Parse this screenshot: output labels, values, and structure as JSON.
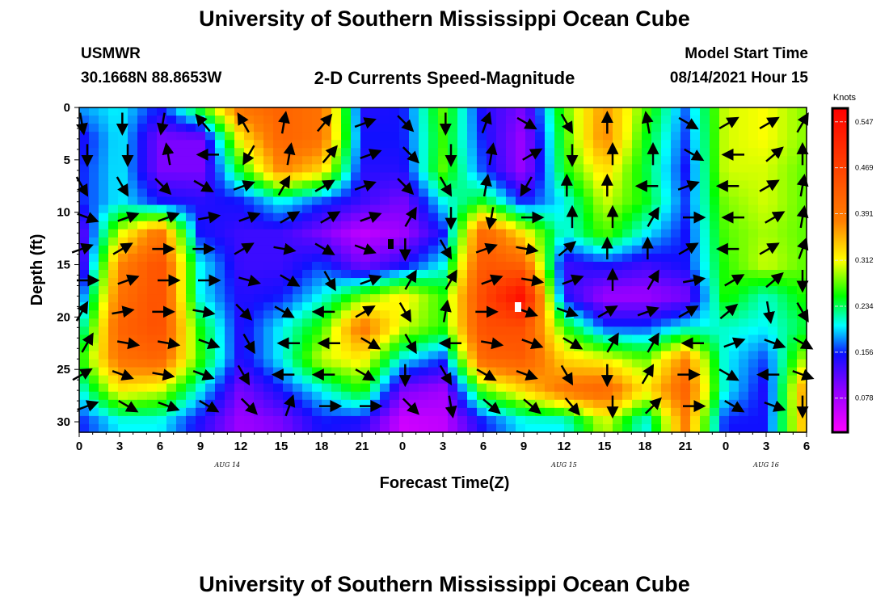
{
  "header": {
    "title": "University of Southern Mississippi Ocean Cube",
    "station": "USMWR",
    "coords": "30.1668N  88.8653W",
    "subtitle": "2-D Currents Speed-Magnitude",
    "model_start_label": "Model Start Time",
    "model_start_value": "08/14/2021 Hour 15",
    "footer_title": "University of Southern Mississippi Ocean Cube"
  },
  "chart_data": {
    "type": "heatmap",
    "title": "2-D Currents Speed-Magnitude",
    "xlabel": "Forecast Time(Z)",
    "ylabel": "Depth (ft)",
    "x_hours": [
      0,
      3,
      6,
      9,
      12,
      15,
      18,
      21,
      24,
      27,
      30,
      33,
      36,
      39,
      42,
      45,
      48,
      51,
      54
    ],
    "x_tick_labels": [
      "0",
      "3",
      "6",
      "9",
      "12",
      "15",
      "18",
      "21",
      "0",
      "3",
      "6",
      "9",
      "12",
      "15",
      "18",
      "21",
      "0",
      "3",
      "6"
    ],
    "date_labels": [
      {
        "label": "AUG 14",
        "hour": 11
      },
      {
        "label": "AUG 15",
        "hour": 36
      },
      {
        "label": "AUG 16",
        "hour": 51
      }
    ],
    "depths": [
      0,
      3,
      6,
      9,
      12,
      15,
      18,
      21,
      24,
      27,
      30
    ],
    "y_tick_labels": [
      "0",
      "5",
      "10",
      "15",
      "20",
      "25",
      "30"
    ],
    "ylim": [
      0,
      31
    ],
    "xlim": [
      0,
      54
    ],
    "colorbar": {
      "label": "Knots",
      "ticks": [
        "0.547",
        "0.469",
        "0.391",
        "0.312",
        "0.234",
        "0.156",
        "0.078"
      ],
      "tick_values": [
        0.547,
        0.469,
        0.391,
        0.312,
        0.234,
        0.156,
        0.078
      ],
      "range": [
        0.02,
        0.57
      ]
    },
    "speed_knots": [
      [
        0.18,
        0.2,
        0.15,
        0.26,
        0.4,
        0.42,
        0.4,
        0.14,
        0.15,
        0.27,
        0.14,
        0.1,
        0.27,
        0.37,
        0.27,
        0.17,
        0.3,
        0.31,
        0.28
      ],
      [
        0.14,
        0.2,
        0.1,
        0.1,
        0.32,
        0.42,
        0.4,
        0.15,
        0.15,
        0.26,
        0.15,
        0.08,
        0.26,
        0.38,
        0.25,
        0.16,
        0.3,
        0.31,
        0.28
      ],
      [
        0.15,
        0.2,
        0.1,
        0.1,
        0.25,
        0.38,
        0.33,
        0.14,
        0.14,
        0.27,
        0.16,
        0.08,
        0.25,
        0.33,
        0.24,
        0.15,
        0.3,
        0.3,
        0.27
      ],
      [
        0.15,
        0.2,
        0.15,
        0.14,
        0.15,
        0.2,
        0.16,
        0.13,
        0.1,
        0.2,
        0.25,
        0.15,
        0.2,
        0.3,
        0.25,
        0.16,
        0.28,
        0.3,
        0.27
      ],
      [
        0.1,
        0.3,
        0.4,
        0.15,
        0.13,
        0.13,
        0.1,
        0.06,
        0.08,
        0.15,
        0.42,
        0.32,
        0.2,
        0.27,
        0.2,
        0.15,
        0.27,
        0.29,
        0.27
      ],
      [
        0.1,
        0.38,
        0.45,
        0.2,
        0.13,
        0.13,
        0.16,
        0.1,
        0.14,
        0.2,
        0.44,
        0.42,
        0.13,
        0.15,
        0.13,
        0.15,
        0.26,
        0.3,
        0.27
      ],
      [
        0.15,
        0.4,
        0.45,
        0.2,
        0.14,
        0.15,
        0.2,
        0.27,
        0.32,
        0.26,
        0.46,
        0.55,
        0.14,
        0.08,
        0.08,
        0.1,
        0.26,
        0.21,
        0.26
      ],
      [
        0.2,
        0.42,
        0.45,
        0.25,
        0.14,
        0.2,
        0.26,
        0.4,
        0.3,
        0.26,
        0.45,
        0.45,
        0.26,
        0.16,
        0.16,
        0.2,
        0.21,
        0.2,
        0.24
      ],
      [
        0.25,
        0.4,
        0.42,
        0.26,
        0.14,
        0.2,
        0.3,
        0.32,
        0.2,
        0.16,
        0.42,
        0.43,
        0.33,
        0.31,
        0.27,
        0.38,
        0.2,
        0.16,
        0.3
      ],
      [
        0.2,
        0.32,
        0.3,
        0.2,
        0.1,
        0.15,
        0.2,
        0.26,
        0.1,
        0.08,
        0.27,
        0.33,
        0.4,
        0.42,
        0.32,
        0.42,
        0.2,
        0.14,
        0.38
      ],
      [
        0.15,
        0.2,
        0.2,
        0.14,
        0.08,
        0.1,
        0.15,
        0.14,
        0.05,
        0.06,
        0.15,
        0.2,
        0.2,
        0.3,
        0.2,
        0.38,
        0.15,
        0.15,
        0.36
      ]
    ],
    "arrow_depths": [
      1.5,
      4.5,
      7.5,
      10.5,
      13.5,
      16.5,
      19.5,
      22.5,
      25.5,
      28.5
    ],
    "arrow_directions_deg_screen": [
      [
        80,
        90,
        100,
        -130,
        -120,
        -80,
        -50,
        -20,
        45,
        90,
        -70,
        30,
        60,
        -90,
        -100,
        30,
        -30,
        -30,
        -60
      ],
      [
        90,
        90,
        -100,
        180,
        120,
        -80,
        -50,
        -20,
        45,
        90,
        -80,
        -30,
        90,
        -90,
        -90,
        30,
        180,
        -40,
        -90
      ],
      [
        60,
        60,
        45,
        30,
        -20,
        -60,
        -30,
        -20,
        45,
        60,
        -80,
        120,
        -90,
        -90,
        180,
        -20,
        180,
        -30,
        -80
      ],
      [
        20,
        -20,
        -20,
        -10,
        -20,
        -30,
        -30,
        -20,
        -60,
        90,
        100,
        0,
        -90,
        -90,
        -60,
        0,
        180,
        -30,
        -80
      ],
      [
        -20,
        -30,
        0,
        0,
        -30,
        10,
        30,
        20,
        90,
        60,
        -20,
        10,
        -40,
        -90,
        -90,
        -30,
        180,
        -30,
        -70
      ],
      [
        0,
        -20,
        0,
        0,
        15,
        30,
        60,
        -20,
        -60,
        -60,
        -20,
        10,
        -20,
        -90,
        -60,
        -10,
        -30,
        -40,
        90
      ],
      [
        -60,
        -10,
        0,
        10,
        45,
        30,
        180,
        -30,
        60,
        -80,
        0,
        20,
        20,
        -30,
        -20,
        -30,
        -40,
        80,
        60
      ],
      [
        -60,
        10,
        10,
        20,
        60,
        180,
        180,
        30,
        60,
        180,
        10,
        20,
        30,
        -60,
        -60,
        180,
        -20,
        20,
        30
      ],
      [
        -30,
        20,
        10,
        20,
        60,
        180,
        180,
        30,
        90,
        60,
        30,
        20,
        60,
        90,
        -60,
        0,
        30,
        180,
        20
      ],
      [
        -20,
        30,
        20,
        30,
        45,
        -70,
        0,
        0,
        45,
        80,
        40,
        40,
        50,
        90,
        -45,
        0,
        30,
        20,
        90
      ]
    ]
  }
}
